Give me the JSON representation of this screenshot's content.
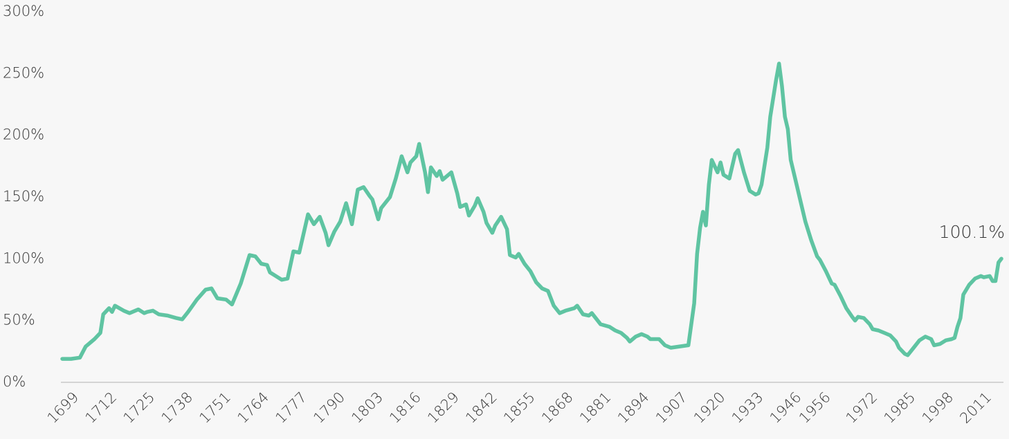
{
  "chart_data": {
    "type": "line",
    "x": [
      1699,
      1702,
      1705,
      1707,
      1710,
      1712,
      1713,
      1715,
      1716,
      1717,
      1720,
      1722,
      1725,
      1727,
      1728,
      1730,
      1732,
      1735,
      1738,
      1740,
      1742,
      1745,
      1748,
      1750,
      1752,
      1755,
      1757,
      1760,
      1763,
      1765,
      1767,
      1769,
      1770,
      1772,
      1774,
      1776,
      1778,
      1780,
      1783,
      1785,
      1787,
      1789,
      1790,
      1792,
      1794,
      1796,
      1798,
      1800,
      1802,
      1804,
      1805,
      1807,
      1808,
      1811,
      1813,
      1815,
      1817,
      1818,
      1820,
      1821,
      1823,
      1824,
      1825,
      1827,
      1828,
      1829,
      1832,
      1834,
      1835,
      1837,
      1838,
      1840,
      1841,
      1843,
      1844,
      1846,
      1847,
      1849,
      1851,
      1852,
      1854,
      1855,
      1857,
      1859,
      1861,
      1863,
      1865,
      1867,
      1869,
      1871,
      1874,
      1875,
      1877,
      1879,
      1880,
      1883,
      1886,
      1888,
      1890,
      1892,
      1893,
      1895,
      1897,
      1899,
      1900,
      1903,
      1905,
      1907,
      1913,
      1915,
      1916,
      1917,
      1918,
      1919,
      1920,
      1921,
      1923,
      1924,
      1925,
      1927,
      1929,
      1930,
      1932,
      1934,
      1936,
      1937,
      1938,
      1940,
      1941,
      1943,
      1944,
      1945,
      1946,
      1947,
      1948,
      1950,
      1951,
      1953,
      1955,
      1957,
      1958,
      1960,
      1962,
      1963,
      1965,
      1967,
      1969,
      1970,
      1971,
      1973,
      1975,
      1976,
      1978,
      1980,
      1982,
      1984,
      1985,
      1987,
      1988,
      1990,
      1992,
      1994,
      1996,
      1997,
      1999,
      2001,
      2003,
      2004,
      2005,
      2006,
      2007,
      2009,
      2011,
      2013,
      2014,
      2016,
      2017,
      2018,
      2019,
      2020
    ],
    "series": [
      {
        "color": "#5fc4a2",
        "values": [
          19,
          19,
          20,
          29,
          35,
          40,
          55,
          60,
          57,
          62,
          58,
          56,
          59,
          56,
          57,
          58,
          55,
          54,
          52,
          51,
          57,
          67,
          75,
          76,
          68,
          67,
          63,
          80,
          103,
          102,
          96,
          95,
          89,
          86,
          83,
          84,
          106,
          105,
          136,
          128,
          134,
          121,
          111,
          122,
          130,
          145,
          128,
          156,
          158,
          151,
          148,
          132,
          141,
          150,
          165,
          183,
          170,
          178,
          183,
          193,
          170,
          154,
          174,
          167,
          171,
          164,
          170,
          153,
          142,
          144,
          135,
          143,
          149,
          138,
          129,
          121,
          127,
          134,
          124,
          103,
          101,
          104,
          96,
          90,
          81,
          76,
          74,
          62,
          56,
          58,
          60,
          62,
          55,
          54,
          56,
          47,
          45,
          42,
          40,
          36,
          33,
          37,
          39,
          37,
          35,
          35,
          30,
          28,
          30,
          64,
          104,
          125,
          138,
          127,
          160,
          180,
          170,
          178,
          168,
          165,
          185,
          188,
          170,
          155,
          152,
          153,
          160,
          190,
          215,
          245,
          258,
          240,
          215,
          205,
          180,
          160,
          150,
          130,
          115,
          102,
          99,
          90,
          80,
          79,
          70,
          60,
          53,
          50,
          53,
          52,
          47,
          43,
          42,
          40,
          38,
          33,
          28,
          23,
          22,
          28,
          34,
          37,
          35,
          30,
          31,
          34,
          35,
          36,
          45,
          52,
          71,
          79,
          84,
          86,
          85,
          86,
          82,
          82,
          97,
          100.1
        ]
      }
    ],
    "annotation": "100.1%",
    "xlim": [
      1699,
      2020
    ],
    "xticks": [
      1699,
      1712,
      1725,
      1738,
      1751,
      1764,
      1777,
      1790,
      1803,
      1816,
      1829,
      1842,
      1855,
      1868,
      1881,
      1894,
      1907,
      1920,
      1933,
      1946,
      1956,
      1972,
      1985,
      1998,
      2011
    ],
    "ylim": [
      0,
      300
    ],
    "yticks": [
      {
        "value": 0,
        "label": "0%"
      },
      {
        "value": 50,
        "label": "50%"
      },
      {
        "value": 100,
        "label": "100%"
      },
      {
        "value": 150,
        "label": "150%"
      },
      {
        "value": 200,
        "label": "200%"
      },
      {
        "value": 250,
        "label": "250%"
      },
      {
        "value": 300,
        "label": "300%"
      }
    ]
  }
}
